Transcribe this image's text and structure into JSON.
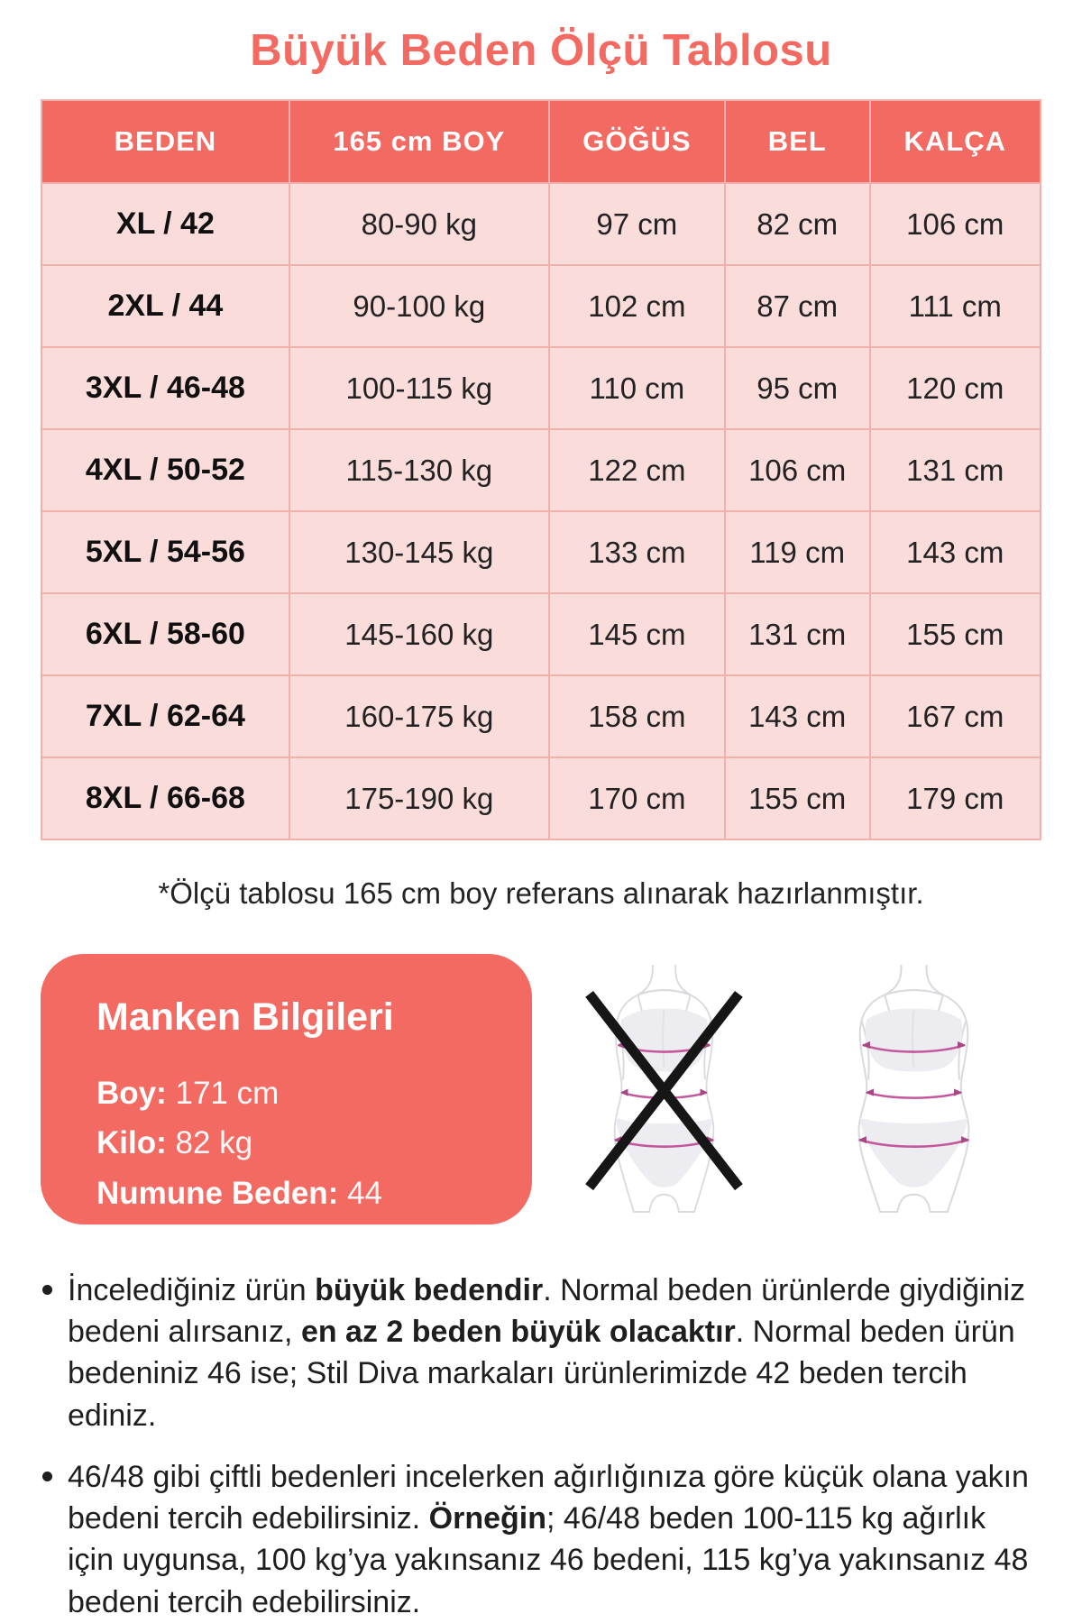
{
  "title": "Büyük Beden Ölçü Tablosu",
  "size_table": {
    "headers": [
      "BEDEN",
      "165 cm BOY",
      "GÖĞÜS",
      "BEL",
      "KALÇA"
    ],
    "rows": [
      [
        "XL / 42",
        "80-90 kg",
        "97 cm",
        "82 cm",
        "106 cm"
      ],
      [
        "2XL / 44",
        "90-100 kg",
        "102 cm",
        "87 cm",
        "111 cm"
      ],
      [
        "3XL / 46-48",
        "100-115 kg",
        "110 cm",
        "95 cm",
        "120 cm"
      ],
      [
        "4XL / 50-52",
        "115-130 kg",
        "122 cm",
        "106 cm",
        "131 cm"
      ],
      [
        "5XL / 54-56",
        "130-145 kg",
        "133 cm",
        "119 cm",
        "143 cm"
      ],
      [
        "6XL / 58-60",
        "145-160 kg",
        "145 cm",
        "131 cm",
        "155 cm"
      ],
      [
        "7XL / 62-64",
        "160-175 kg",
        "158 cm",
        "143 cm",
        "167 cm"
      ],
      [
        "8XL / 66-68",
        "175-190 kg",
        "170 cm",
        "155 cm",
        "179 cm"
      ]
    ],
    "footnote": "*Ölçü tablosu 165 cm boy referans alınarak hazırlanmıştır."
  },
  "model_info": {
    "title": "Manken Bilgileri",
    "fields": [
      {
        "label": "Boy",
        "value": "171 cm"
      },
      {
        "label": "Kilo",
        "value": "82 kg"
      },
      {
        "label": "Numune Beden",
        "value": "44"
      }
    ]
  },
  "notes": [
    {
      "segments": [
        {
          "text": "İncelediğiniz ürün "
        },
        {
          "text": "büyük bedendir",
          "bold": true
        },
        {
          "text": ". Normal beden ürünlerde giydiğiniz bedeni alırsanız, "
        },
        {
          "text": "en az 2 beden büyük olacaktır",
          "bold": true
        },
        {
          "text": ". Normal beden ürün bedeniniz 46 ise; Stil Diva markaları ürünlerimizde 42 beden tercih ediniz."
        }
      ]
    },
    {
      "segments": [
        {
          "text": "46/48 gibi çiftli bedenleri incelerken ağırlığınıza göre küçük olana yakın bedeni tercih edebilirsiniz. "
        },
        {
          "text": "Örneğin",
          "bold": true
        },
        {
          "text": "; 46/48 beden 100-115 kg ağırlık için uygunsa, 100 kg’ya yakınsanız 46 bedeni, 115 kg’ya yakınsanız 48 bedeni tercih edebilirsiniz."
        }
      ]
    }
  ],
  "colors": {
    "coral": "#F26A62",
    "cell_pink": "#FADCDA",
    "grid_pink": "#F2B0AD",
    "text_dark": "#1E1E1E",
    "measure_line": "#C4579B"
  }
}
